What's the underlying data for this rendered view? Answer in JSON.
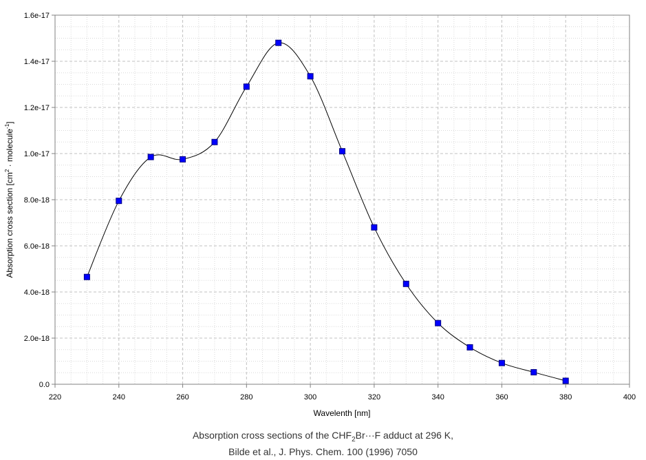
{
  "chart_data": {
    "type": "line",
    "xlabel": "Wavelenth [nm]",
    "ylabel": {
      "prefix": "Absorption cross section [cm",
      "sup1": "2",
      "middle": " · molecule",
      "sup2": "-1",
      "suffix": "]"
    },
    "xlim": [
      220,
      400
    ],
    "ylim": [
      0,
      1.6e-17
    ],
    "x_ticks": [
      "220",
      "240",
      "260",
      "280",
      "300",
      "320",
      "340",
      "360",
      "380",
      "400"
    ],
    "y_ticks": [
      "0.0",
      "2.0e-18",
      "4.0e-18",
      "6.0e-18",
      "8.0e-18",
      "1.0e-17",
      "1.2e-17",
      "1.4e-17",
      "1.6e-17"
    ],
    "grid": true,
    "series": [
      {
        "marker": "square",
        "line_color": "#000000",
        "marker_color": "#0000ff",
        "x": [
          230,
          240,
          250,
          260,
          270,
          280,
          290,
          300,
          310,
          320,
          330,
          340,
          350,
          360,
          370,
          380
        ],
        "y": [
          4.65e-18,
          7.95e-18,
          9.85e-18,
          9.75e-18,
          1.05e-17,
          1.29e-17,
          1.48e-17,
          1.335e-17,
          1.01e-17,
          6.8e-18,
          4.35e-18,
          2.65e-18,
          1.6e-18,
          9.2e-19,
          5.2e-19,
          1.5e-19
        ]
      }
    ]
  },
  "caption": {
    "line1_a": "Absorption cross sections of the CHF",
    "line1_sub": "2",
    "line1_b": "Br···F adduct at 296 K,",
    "line2": "Bilde et al., J. Phys. Chem. 100 (1996) 7050"
  }
}
